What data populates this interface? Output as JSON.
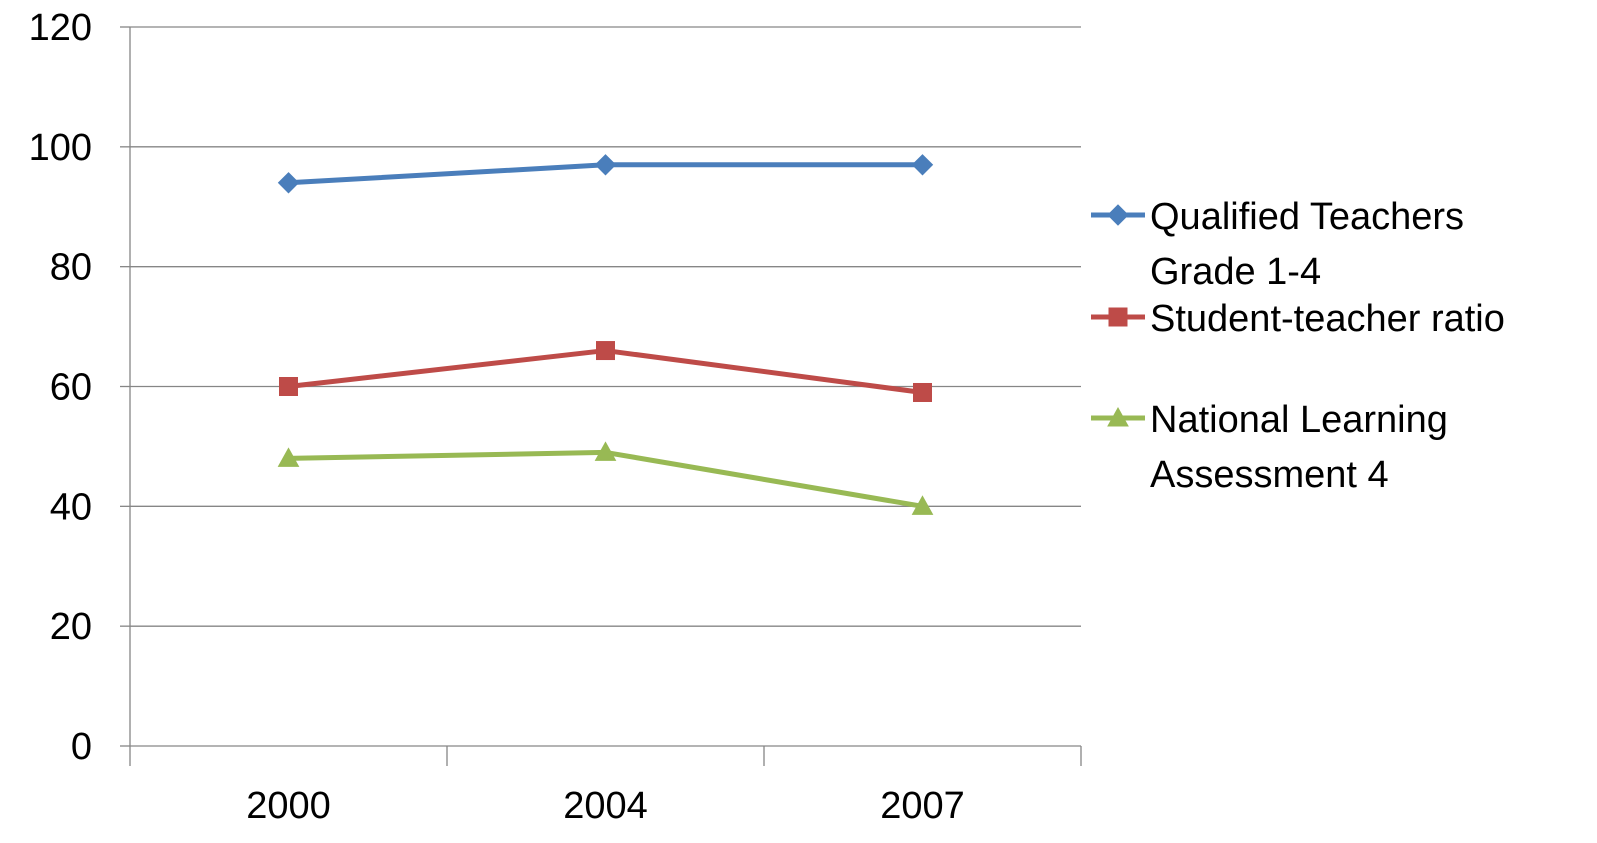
{
  "chart_data": {
    "type": "line",
    "title": "",
    "xlabel": "",
    "ylabel": "",
    "categories": [
      "2000",
      "2004",
      "2007"
    ],
    "ylim": [
      0,
      120
    ],
    "yticks": [
      "0",
      "20",
      "40",
      "60",
      "80",
      "100",
      "120"
    ],
    "grid": "horizontal major gridlines",
    "legend_position": "right",
    "series": [
      {
        "name": "Qualified Teachers Grade 1-4",
        "legend_lines": [
          "Qualified Teachers",
          "Grade 1-4"
        ],
        "values": [
          94,
          97,
          97
        ],
        "color": "#4a7ebb",
        "marker": "diamond"
      },
      {
        "name": "Student-teacher ratio",
        "legend_lines": [
          "Student-teacher ratio"
        ],
        "values": [
          60,
          66,
          59
        ],
        "color": "#be4b48",
        "marker": "square"
      },
      {
        "name": "National Learning Assessment 4",
        "legend_lines": [
          "National Learning",
          "Assessment 4"
        ],
        "values": [
          48,
          49,
          40
        ],
        "color": "#98b954",
        "marker": "triangle"
      }
    ]
  }
}
